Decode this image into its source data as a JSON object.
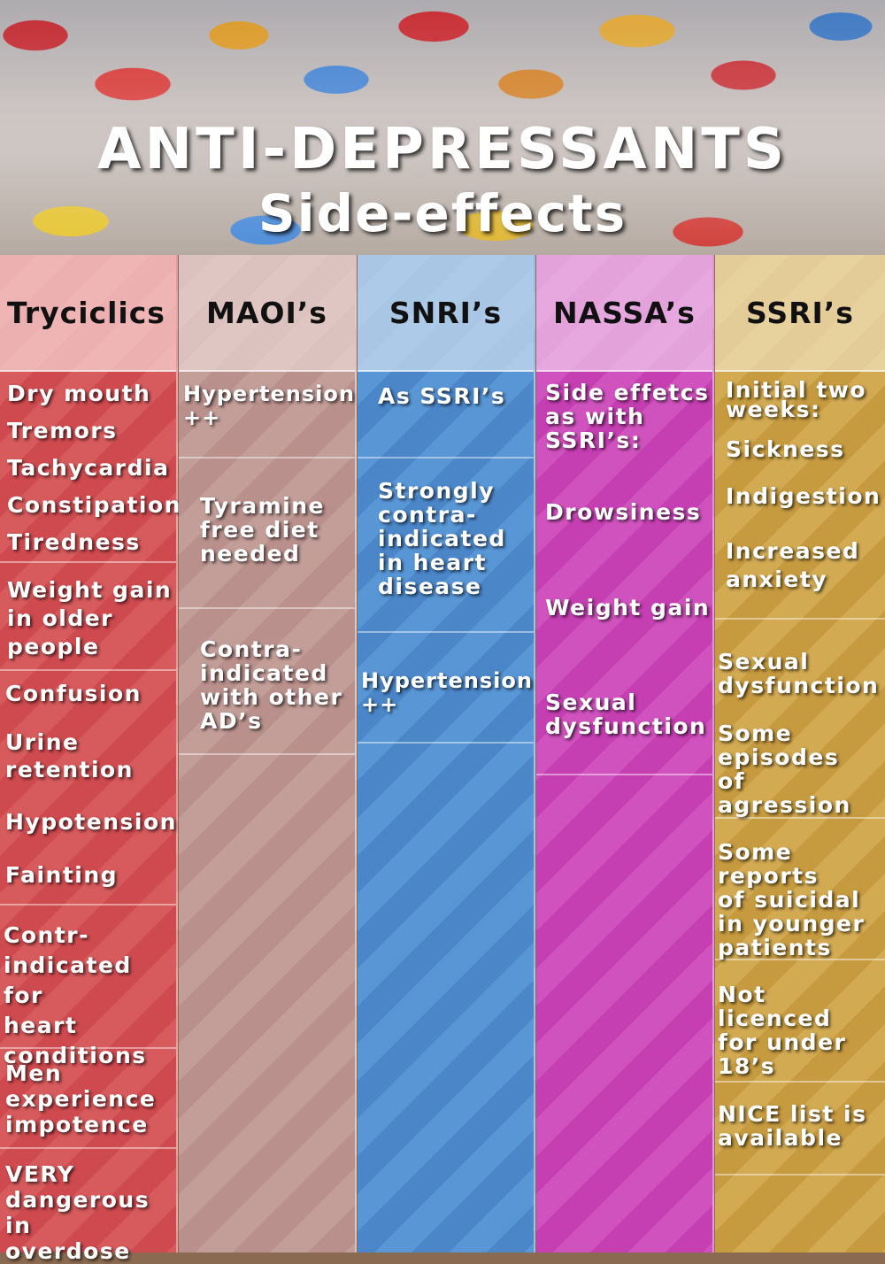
{
  "title": {
    "line1": "ANTI-DEPRESSANTS",
    "line2": "Side-effects"
  },
  "columns": [
    {
      "header": "Tryciclics",
      "color": "#cf4a4f",
      "items": [
        "Dry mouth",
        "Tremors",
        "Tachycardia",
        "Constipation",
        "Tiredness",
        "Weight gain\nin older\npeople",
        "Confusion",
        "Urine\nretention",
        "Hypotension",
        "Fainting",
        "Contr-\nindicated for\nheart\nconditions",
        "Men\nexperience\nimpotence",
        "VERY\ndangerous in\noverdose"
      ]
    },
    {
      "header": "MAOI’s",
      "color": "#b9908c",
      "items": [
        "Hypertension\n++",
        "Tyramine\nfree diet\nneeded",
        "Contra-\nindicated\nwith other\nAD’s"
      ]
    },
    {
      "header": "SNRI’s",
      "color": "#4a86c8",
      "items": [
        "As SSRI’s",
        "Strongly\ncontra-\nindicated\nin heart\ndisease",
        "Hypertension\n++"
      ]
    },
    {
      "header": "NASSA’s",
      "color": "#c53fb2",
      "items": [
        "Side effetcs\nas with\nSSRI’s:",
        "Drowsiness",
        "Weight gain",
        "Sexual\ndysfunction"
      ]
    },
    {
      "header": "SSRI’s",
      "color": "#c69a3f",
      "items": [
        "Initial two\nweeks:",
        "Sickness",
        "Indigestion",
        "Increased\nanxiety",
        "Sexual\ndysfunction",
        "Some\nepisodes\nof agression",
        "Some reports\nof suicidal\nin younger\npatients",
        "Not licenced\nfor under\n18’s",
        "NICE list is\navailable"
      ]
    }
  ]
}
